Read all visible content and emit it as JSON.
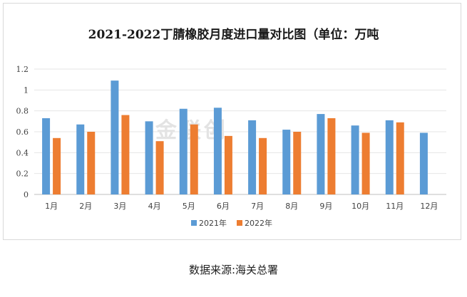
{
  "chart_data": {
    "type": "bar",
    "title": "2021-2022丁腈橡胶月度进口量对比图（单位：万吨",
    "categories": [
      "1月",
      "2月",
      "3月",
      "4月",
      "5月",
      "6月",
      "7月",
      "8月",
      "9月",
      "10月",
      "11月",
      "12月"
    ],
    "series": [
      {
        "name": "2021年",
        "color": "#5b9bd5",
        "values": [
          0.73,
          0.67,
          1.09,
          0.7,
          0.82,
          0.83,
          0.71,
          0.62,
          0.77,
          0.66,
          0.71,
          0.59
        ]
      },
      {
        "name": "2022年",
        "color": "#ed7d31",
        "values": [
          0.54,
          0.6,
          0.76,
          0.51,
          0.67,
          0.56,
          0.54,
          0.6,
          0.73,
          0.59,
          0.69,
          null
        ]
      }
    ],
    "yticks": [
      "0",
      "0.2",
      "0.4",
      "0.6",
      "0.8",
      "1",
      "1.2"
    ],
    "ylim": [
      0,
      1.2
    ],
    "grid": true,
    "legend_position": "bottom"
  },
  "watermark": "金联创",
  "source_text": "数据来源:海关总署"
}
